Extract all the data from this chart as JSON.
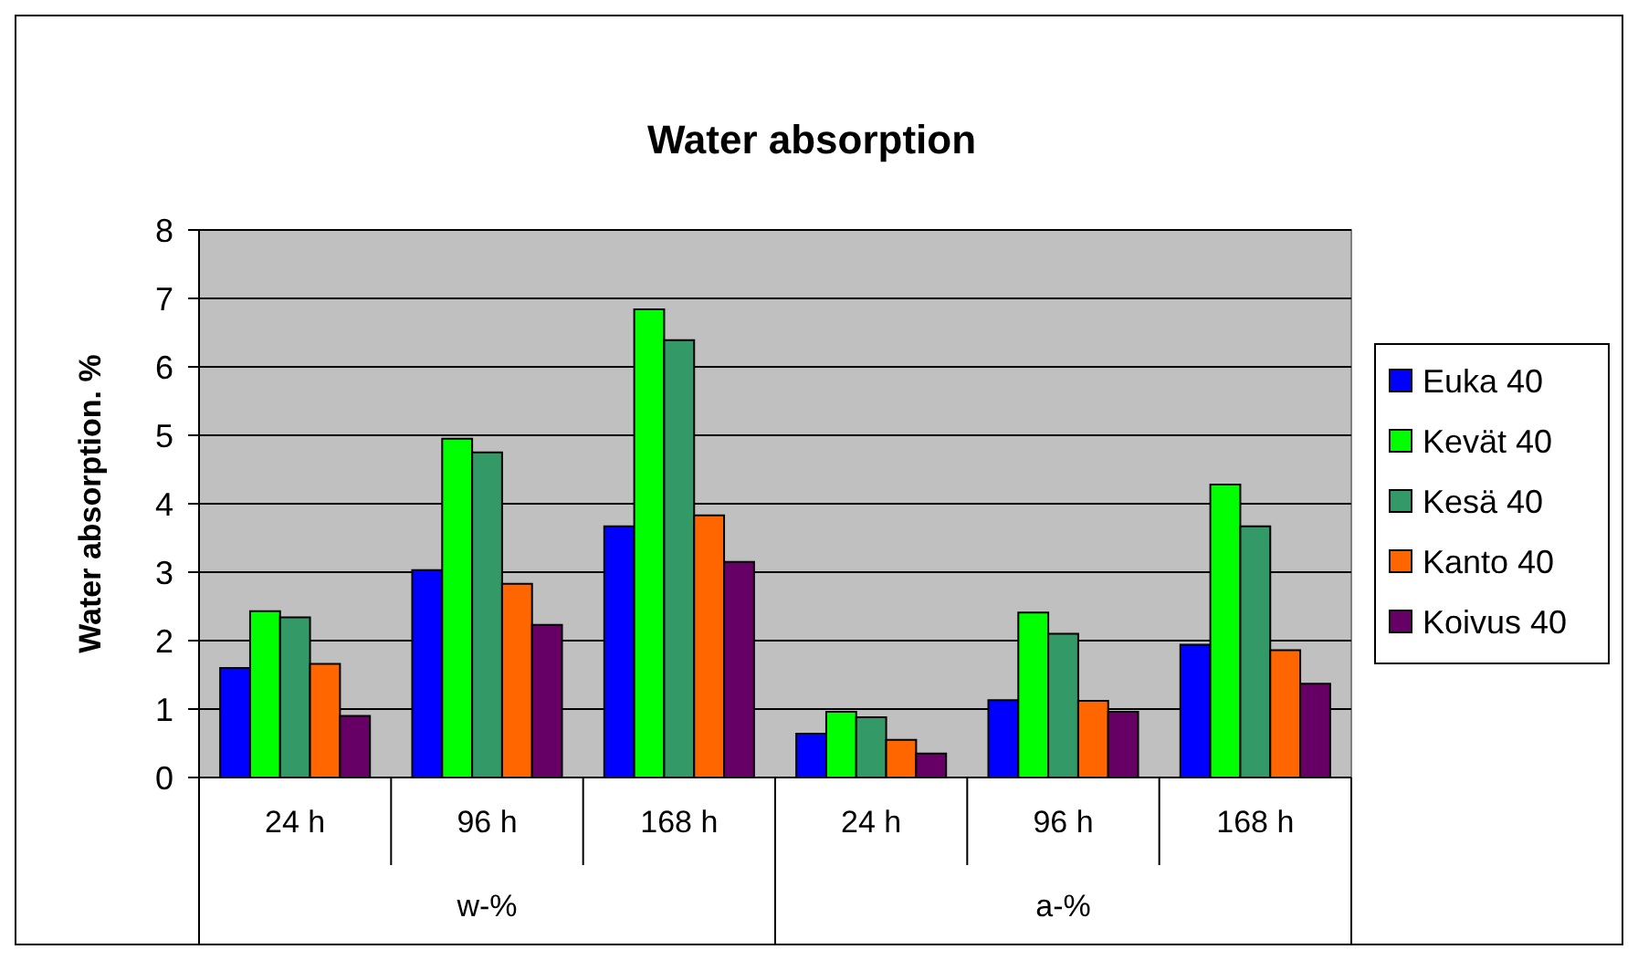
{
  "chart_data": {
    "type": "bar",
    "title": "Water absorption",
    "ylabel": "Water absorption. %",
    "categories": [
      "24 h",
      "96 h",
      "168 h",
      "24 h",
      "96 h",
      "168 h"
    ],
    "annotations": [
      "w-%",
      "a-%"
    ],
    "series": [
      {
        "name": "Euka 40",
        "color": "#0000ff",
        "values": [
          1.6,
          3.03,
          3.67,
          0.64,
          1.13,
          1.94
        ]
      },
      {
        "name": "Kevät 40",
        "color": "#00ff00",
        "values": [
          2.43,
          4.95,
          6.84,
          0.96,
          2.41,
          4.28
        ]
      },
      {
        "name": "Kesä 40",
        "color": "#339966",
        "values": [
          2.34,
          4.75,
          6.39,
          0.88,
          2.1,
          3.67
        ]
      },
      {
        "name": "Kanto 40",
        "color": "#ff6600",
        "values": [
          1.66,
          2.83,
          3.83,
          0.55,
          1.12,
          1.86
        ]
      },
      {
        "name": "Koivus 40",
        "color": "#660066",
        "values": [
          0.9,
          2.23,
          3.15,
          0.35,
          0.96,
          1.37
        ]
      }
    ],
    "ylim": [
      0,
      8
    ],
    "yticks": [
      0,
      1,
      2,
      3,
      4,
      5,
      6,
      7,
      8
    ],
    "grid": "y",
    "legend": "right"
  }
}
